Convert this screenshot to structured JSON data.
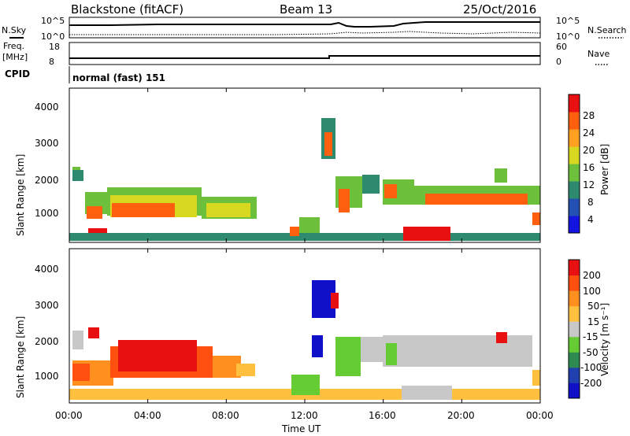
{
  "header": {
    "station": "Blackstone (fitACF)",
    "beam": "Beam 13",
    "date": "25/Oct/2016"
  },
  "top_panels": {
    "nsky_label": "N.Sky",
    "nsearch_label": "N.Search",
    "noise_ticks": [
      "10^5",
      "10^0"
    ],
    "freq_label": "Freq.",
    "freq_unit": "[MHz]",
    "freq_ticks": [
      "18",
      "8"
    ],
    "nave_label": "Nave",
    "nave_ticks": [
      "60",
      "0"
    ],
    "cpid_label": "CPID",
    "cpid_value": "normal (fast) 151"
  },
  "chart_data": [
    {
      "type": "heatmap",
      "name": "power",
      "ylabel": "Slant Range [km]",
      "xlabel": "Time UT",
      "x_ticks": [
        "00:00",
        "04:00",
        "08:00",
        "12:00",
        "16:00",
        "20:00",
        "00:00"
      ],
      "y_ticks": [
        "1000",
        "2000",
        "3000",
        "4000"
      ],
      "ylim": [
        180,
        4500
      ],
      "colorbar": {
        "label": "Power [dB]",
        "ticks": [
          "28",
          "24",
          "20",
          "16",
          "12",
          "8",
          "4"
        ],
        "colors": [
          "#1414e0",
          "#2450b4",
          "#2e8a6e",
          "#6cc03c",
          "#d8d820",
          "#ffa020",
          "#ff6010",
          "#e81010"
        ]
      }
    },
    {
      "type": "heatmap",
      "name": "velocity",
      "ylabel": "Slant Range [km]",
      "xlabel": "Time UT",
      "x_ticks": [
        "00:00",
        "04:00",
        "08:00",
        "12:00",
        "16:00",
        "20:00",
        "00:00"
      ],
      "y_ticks": [
        "1000",
        "2000",
        "3000",
        "4000"
      ],
      "ylim": [
        180,
        4500
      ],
      "colorbar": {
        "label": "Velocity [m s⁻¹]",
        "ticks": [
          "200",
          "100",
          "50",
          "15",
          "-15",
          "-50",
          "-100",
          "-200"
        ],
        "colors": [
          "#e81010",
          "#ff5010",
          "#ff9020",
          "#ffc040",
          "#c8c8c8",
          "#66cc33",
          "#2e8a50",
          "#2040b0",
          "#1010c8"
        ]
      }
    }
  ]
}
